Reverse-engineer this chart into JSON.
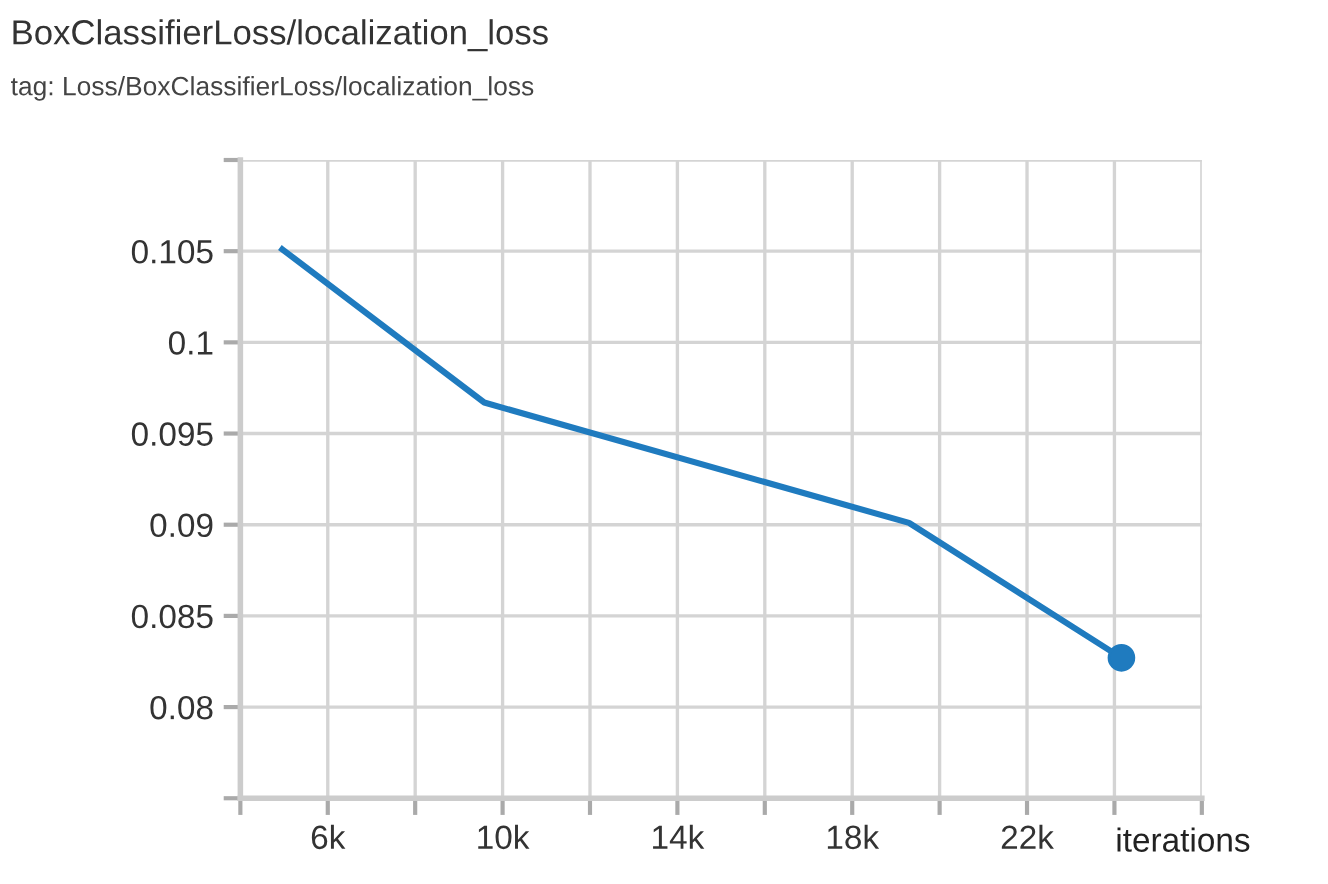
{
  "chart_data": {
    "type": "line",
    "title": "BoxClassifierLoss/localization_loss",
    "subtitle": "tag: Loss/BoxClassifierLoss/localization_loss",
    "xlabel": "iterations",
    "series": [
      {
        "color": "#1f7bbf",
        "x": [
          4960,
          9580,
          19300,
          24160
        ],
        "values": [
          0.1051,
          0.0967,
          0.0901,
          0.0827
        ]
      },
      {
        "type": "scatter",
        "color": "#1f7bbf",
        "marker": "circle",
        "x": [
          24160
        ],
        "values": [
          0.0827
        ]
      }
    ],
    "xlim": [
      4000,
      26000
    ],
    "xticks": [
      {
        "value": 4000,
        "label": null
      },
      {
        "value": 6000,
        "label": "6k"
      },
      {
        "value": 8000,
        "label": null
      },
      {
        "value": 10000,
        "label": "10k"
      },
      {
        "value": 12000,
        "label": null
      },
      {
        "value": 14000,
        "label": "14k"
      },
      {
        "value": 16000,
        "label": null
      },
      {
        "value": 18000,
        "label": "18k"
      },
      {
        "value": 20000,
        "label": null
      },
      {
        "value": 22000,
        "label": "22k"
      },
      {
        "value": 24000,
        "label": null
      },
      {
        "value": 26000,
        "label": null
      }
    ],
    "ylim": [
      0.075,
      0.11
    ],
    "yticks": [
      {
        "value": 0.075,
        "label": null
      },
      {
        "value": 0.08,
        "label": "0.08"
      },
      {
        "value": 0.085,
        "label": "0.085"
      },
      {
        "value": 0.09,
        "label": "0.09"
      },
      {
        "value": 0.095,
        "label": "0.095"
      },
      {
        "value": 0.1,
        "label": "0.1"
      },
      {
        "value": 0.105,
        "label": "0.105"
      },
      {
        "value": 0.11,
        "label": null
      }
    ],
    "grid": true,
    "legend": false
  }
}
